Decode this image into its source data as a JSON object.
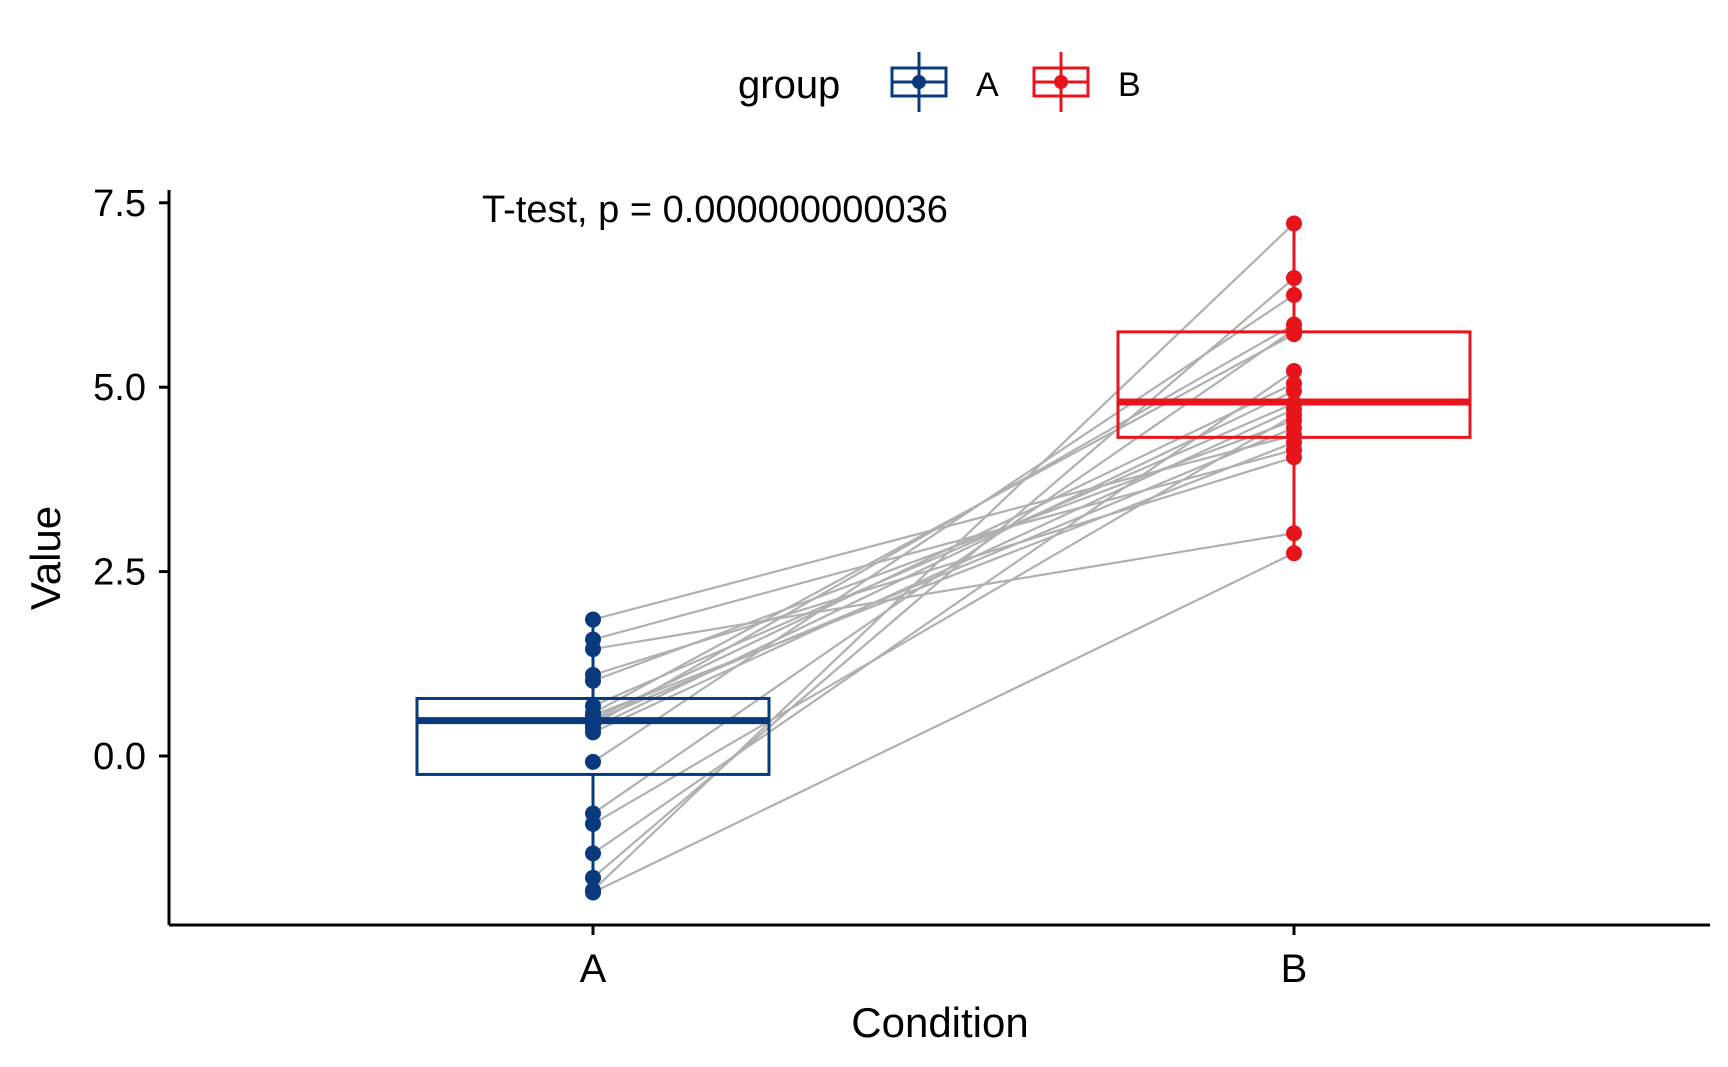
{
  "chart_data": {
    "type": "box-paired",
    "title": "",
    "annotation": "T-test, p = 0.000000000036",
    "xlabel": "Condition",
    "ylabel": "Value",
    "ylim": [
      -2.3,
      7.7
    ],
    "y_ticks": [
      0.0,
      2.5,
      5.0,
      7.5
    ],
    "y_tick_labels": [
      "0.0",
      "2.5",
      "5.0",
      "7.5"
    ],
    "categories": [
      "A",
      "B"
    ],
    "legend": {
      "title": "group",
      "position": "top",
      "entries": [
        "A",
        "B"
      ]
    },
    "colors": {
      "A": "#0a3a7e",
      "B": "#e8141c",
      "line": "#b0b0b0"
    },
    "boxes": [
      {
        "group": "A",
        "q1": -0.25,
        "median": 0.48,
        "q3": 0.78,
        "min": -1.85,
        "max": 1.85
      },
      {
        "group": "B",
        "q1": 4.32,
        "median": 4.8,
        "q3": 5.75,
        "min": 2.75,
        "max": 7.22
      }
    ],
    "pairs": [
      {
        "a": 1.85,
        "b": 4.35
      },
      {
        "a": 1.58,
        "b": 4.15
      },
      {
        "a": 1.45,
        "b": 3.02
      },
      {
        "a": 1.1,
        "b": 4.05
      },
      {
        "a": 1.02,
        "b": 4.55
      },
      {
        "a": 0.68,
        "b": 4.78
      },
      {
        "a": 0.58,
        "b": 5.72
      },
      {
        "a": 0.55,
        "b": 4.25
      },
      {
        "a": 0.5,
        "b": 5.05
      },
      {
        "a": 0.48,
        "b": 4.45
      },
      {
        "a": 0.42,
        "b": 5.85
      },
      {
        "a": 0.38,
        "b": 4.95
      },
      {
        "a": 0.32,
        "b": 4.7
      },
      {
        "a": -0.08,
        "b": 6.25
      },
      {
        "a": -0.78,
        "b": 5.78
      },
      {
        "a": -0.92,
        "b": 4.62
      },
      {
        "a": -1.32,
        "b": 5.22
      },
      {
        "a": -1.65,
        "b": 6.48
      },
      {
        "a": -1.82,
        "b": 7.22
      },
      {
        "a": -1.85,
        "b": 2.75
      }
    ]
  }
}
